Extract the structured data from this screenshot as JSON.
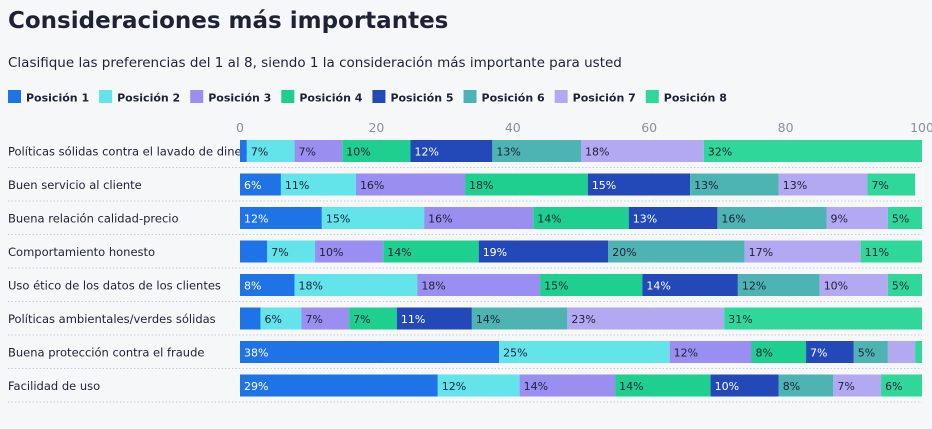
{
  "chart_data": {
    "type": "bar",
    "orientation": "horizontal",
    "stacked": true,
    "title": "Consideraciones más importantes",
    "subtitle": "Clasifique las preferencias del 1 al 8, siendo 1 la consideración más importante para usted",
    "xlim": [
      0,
      100
    ],
    "x_ticks": [
      "0",
      "20",
      "40",
      "60",
      "80",
      "100"
    ],
    "legend_position": "top-left",
    "grid": true,
    "categories": [
      "Políticas sólidas contra el lavado de dinero",
      "Buen servicio al cliente",
      "Buena relación calidad-precio",
      "Comportamiento honesto",
      "Uso ético de los datos de los clientes",
      "Políticas ambientales/verdes sólidas",
      "Buena protección contra el fraude",
      "Facilidad de uso"
    ],
    "series": [
      {
        "name": "Posición 1",
        "color": "#1e73e6",
        "values": [
          1,
          6,
          12,
          4,
          8,
          3,
          38,
          29
        ],
        "labels": [
          "",
          "6%",
          "12%",
          "",
          "8%",
          "",
          "38%",
          "29%"
        ]
      },
      {
        "name": "Posición 2",
        "color": "#63e3ea",
        "values": [
          7,
          11,
          15,
          7,
          18,
          6,
          25,
          12
        ],
        "labels": [
          "7%",
          "11%",
          "15%",
          "7%",
          "18%",
          "6%",
          "25%",
          "12%"
        ]
      },
      {
        "name": "Posición 3",
        "color": "#9a8ef0",
        "values": [
          7,
          16,
          16,
          10,
          18,
          7,
          12,
          14
        ],
        "labels": [
          "7%",
          "16%",
          "16%",
          "10%",
          "18%",
          "7%",
          "12%",
          "14%"
        ]
      },
      {
        "name": "Posición 4",
        "color": "#1fcf8f",
        "values": [
          10,
          18,
          14,
          14,
          15,
          7,
          8,
          14
        ],
        "labels": [
          "10%",
          "18%",
          "14%",
          "14%",
          "15%",
          "7%",
          "8%",
          "14%"
        ]
      },
      {
        "name": "Posición 5",
        "color": "#2348b8",
        "values": [
          12,
          15,
          13,
          19,
          14,
          11,
          7,
          10
        ],
        "labels": [
          "12%",
          "15%",
          "13%",
          "19%",
          "14%",
          "11%",
          "7%",
          "10%"
        ]
      },
      {
        "name": "Posición 6",
        "color": "#4db3b3",
        "values": [
          13,
          13,
          16,
          20,
          12,
          14,
          5,
          8
        ],
        "labels": [
          "13%",
          "13%",
          "16%",
          "20%",
          "12%",
          "14%",
          "5%",
          "8%"
        ]
      },
      {
        "name": "Posición 7",
        "color": "#b3a8f2",
        "values": [
          18,
          13,
          9,
          17,
          10,
          23,
          4,
          7
        ],
        "labels": [
          "18%",
          "13%",
          "9%",
          "17%",
          "10%",
          "23%",
          "",
          "7%"
        ]
      },
      {
        "name": "Posición 8",
        "color": "#2fd89a",
        "values": [
          32,
          7,
          5,
          11,
          5,
          31,
          1,
          6
        ],
        "labels": [
          "32%",
          "7%",
          "5%",
          "11%",
          "5%",
          "31%",
          "",
          "6%"
        ]
      }
    ]
  }
}
